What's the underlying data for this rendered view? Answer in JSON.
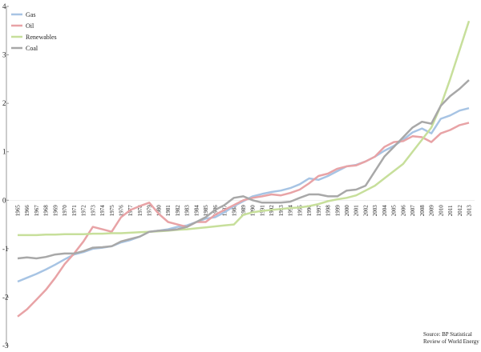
{
  "chart_data": {
    "type": "line",
    "categories": [
      "1965",
      "1966",
      "1967",
      "1968",
      "1969",
      "1970",
      "1971",
      "1972",
      "1973",
      "1974",
      "1975",
      "1976",
      "1977",
      "1978",
      "1979",
      "1980",
      "1981",
      "1982",
      "1983",
      "1984",
      "1985",
      "1986",
      "1987",
      "1988",
      "1989",
      "1990",
      "1991",
      "1992",
      "1993",
      "1994",
      "1995",
      "1996",
      "1997",
      "1998",
      "1999",
      "2000",
      "2001",
      "2002",
      "2003",
      "2004",
      "2005",
      "2006",
      "2007",
      "2008",
      "2009",
      "2010",
      "2011",
      "2012",
      "2013"
    ],
    "series": [
      {
        "name": "Gas",
        "color": "#a7c4e4",
        "values": [
          -1.68,
          -1.6,
          -1.52,
          -1.43,
          -1.33,
          -1.22,
          -1.12,
          -1.07,
          -1.0,
          -0.98,
          -0.95,
          -0.87,
          -0.82,
          -0.75,
          -0.65,
          -0.63,
          -0.6,
          -0.55,
          -0.52,
          -0.45,
          -0.38,
          -0.35,
          -0.25,
          -0.12,
          -0.02,
          0.08,
          0.13,
          0.17,
          0.2,
          0.25,
          0.33,
          0.45,
          0.42,
          0.5,
          0.6,
          0.7,
          0.73,
          0.8,
          0.9,
          1.02,
          1.12,
          1.25,
          1.4,
          1.48,
          1.38,
          1.68,
          1.75,
          1.85,
          1.9
        ]
      },
      {
        "name": "Oil",
        "color": "#e8a3a6",
        "values": [
          -2.4,
          -2.25,
          -2.05,
          -1.85,
          -1.6,
          -1.32,
          -1.1,
          -0.85,
          -0.55,
          -0.6,
          -0.65,
          -0.35,
          -0.2,
          -0.12,
          -0.05,
          -0.28,
          -0.45,
          -0.5,
          -0.55,
          -0.45,
          -0.45,
          -0.3,
          -0.2,
          -0.1,
          0.0,
          0.05,
          0.08,
          0.12,
          0.1,
          0.15,
          0.22,
          0.35,
          0.5,
          0.55,
          0.65,
          0.7,
          0.72,
          0.8,
          0.9,
          1.1,
          1.2,
          1.22,
          1.32,
          1.3,
          1.2,
          1.38,
          1.45,
          1.55,
          1.6
        ]
      },
      {
        "name": "Renewables",
        "color": "#c7df9b",
        "values": [
          -0.72,
          -0.72,
          -0.72,
          -0.71,
          -0.71,
          -0.7,
          -0.7,
          -0.7,
          -0.69,
          -0.69,
          -0.68,
          -0.68,
          -0.67,
          -0.66,
          -0.65,
          -0.64,
          -0.63,
          -0.61,
          -0.6,
          -0.58,
          -0.56,
          -0.54,
          -0.52,
          -0.5,
          -0.3,
          -0.25,
          -0.22,
          -0.2,
          -0.18,
          -0.16,
          -0.15,
          -0.12,
          -0.08,
          -0.02,
          0.02,
          0.05,
          0.1,
          0.2,
          0.3,
          0.45,
          0.6,
          0.75,
          1.0,
          1.25,
          1.5,
          1.95,
          2.5,
          3.1,
          3.7
        ]
      },
      {
        "name": "Coal",
        "color": "#a8a8a8",
        "values": [
          -1.2,
          -1.18,
          -1.2,
          -1.17,
          -1.12,
          -1.1,
          -1.1,
          -1.05,
          -0.98,
          -0.97,
          -0.95,
          -0.85,
          -0.8,
          -0.75,
          -0.65,
          -0.63,
          -0.62,
          -0.6,
          -0.55,
          -0.45,
          -0.35,
          -0.2,
          -0.1,
          0.05,
          0.08,
          0.0,
          -0.05,
          -0.05,
          -0.05,
          -0.03,
          0.05,
          0.12,
          0.12,
          0.08,
          0.08,
          0.2,
          0.22,
          0.3,
          0.6,
          0.9,
          1.1,
          1.3,
          1.5,
          1.62,
          1.58,
          1.95,
          2.15,
          2.3,
          2.48
        ]
      }
    ],
    "ylim": [
      -3,
      4
    ],
    "yticks": [
      -3,
      -2,
      -1,
      0,
      1,
      2,
      3,
      4
    ],
    "legend": "top-left",
    "annotations": [
      "Source: BP Statistical",
      "Review of World Energy"
    ]
  }
}
